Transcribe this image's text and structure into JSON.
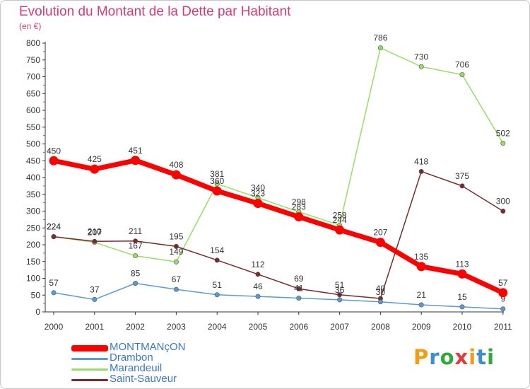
{
  "header": {
    "title": "Evolution du Montant de la Dette par Habitant",
    "subtitle": "(en €)"
  },
  "logo": {
    "text": "Proxiti"
  },
  "chart_data": {
    "type": "line",
    "title": "Evolution du Montant de la Dette par Habitant",
    "subtitle": "(en €)",
    "xlabel": "",
    "ylabel": "",
    "x": [
      "2000",
      "2001",
      "2002",
      "2003",
      "2004",
      "2005",
      "2006",
      "2007",
      "2008",
      "2009",
      "2010",
      "2011"
    ],
    "y_ticks": [
      "0",
      "50",
      "100",
      "150",
      "200",
      "250",
      "300",
      "350",
      "400",
      "450",
      "500",
      "550",
      "600",
      "650",
      "700",
      "750",
      "800"
    ],
    "ylim": [
      0,
      800
    ],
    "grid": false,
    "legend_position": "bottom-left",
    "series": [
      {
        "name": "MONTMANçON",
        "color": "#ff0000",
        "values": [
          450,
          425,
          451,
          408,
          360,
          323,
          283,
          244,
          207,
          135,
          113,
          57
        ]
      },
      {
        "name": "Drambon",
        "color": "#5b9bd5",
        "values": [
          57,
          37,
          85,
          67,
          51,
          46,
          41,
          36,
          30,
          21,
          15,
          9
        ]
      },
      {
        "name": "Marandeuil",
        "color": "#99dd66",
        "values": [
          224,
          207,
          167,
          149,
          381,
          340,
          298,
          258,
          786,
          730,
          706,
          502
        ]
      },
      {
        "name": "Saint-Sauveur",
        "color": "#7a2a2a",
        "values": [
          224,
          210,
          211,
          195,
          154,
          112,
          69,
          51,
          40,
          418,
          375,
          300
        ]
      }
    ]
  }
}
